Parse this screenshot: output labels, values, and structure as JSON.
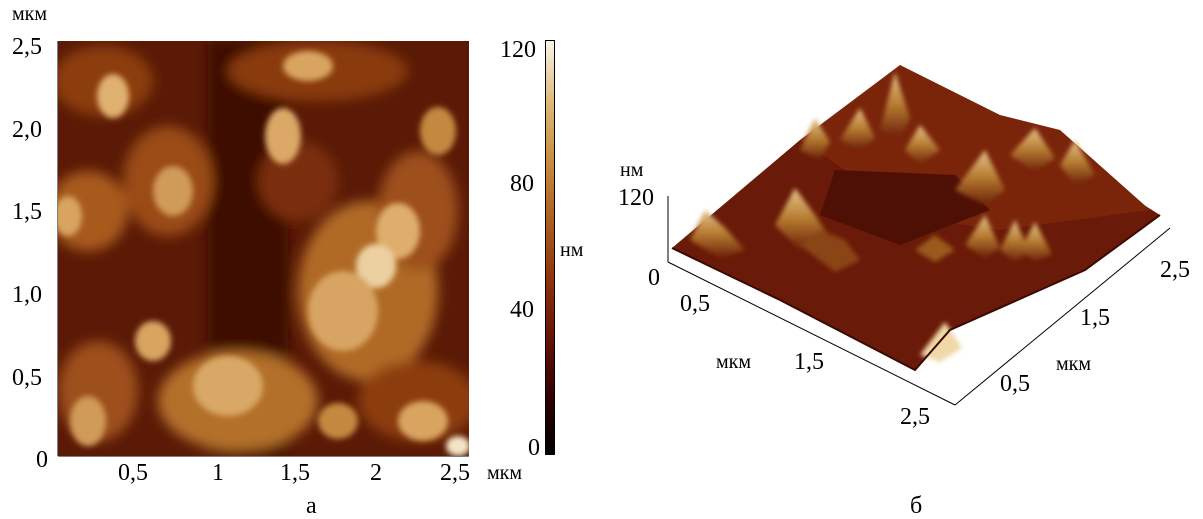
{
  "panel_a": {
    "y_unit": "мкм",
    "y_ticks": [
      "2,5",
      "2,0",
      "1,5",
      "1,0",
      "0,5",
      "0"
    ],
    "x_ticks": [
      "0,5",
      "1",
      "1,5",
      "2",
      "2,5"
    ],
    "x_unit": "мкм",
    "caption": "а"
  },
  "colorbar": {
    "ticks": [
      "120",
      "80",
      "40",
      "0"
    ],
    "unit": "нм",
    "colors": [
      "#000000",
      "#5a0f05",
      "#a85a1c",
      "#ddb878",
      "#fbf3e8"
    ]
  },
  "panel_b": {
    "z_unit": "нм",
    "z_ticks": [
      "120",
      "0"
    ],
    "left_axis_ticks": [
      "0,5",
      "1,5",
      "2,5"
    ],
    "left_axis_unit": "мкм",
    "right_axis_ticks": [
      "2,5",
      "1,5",
      "0,5"
    ],
    "right_axis_unit": "мкм",
    "caption": "б"
  }
}
